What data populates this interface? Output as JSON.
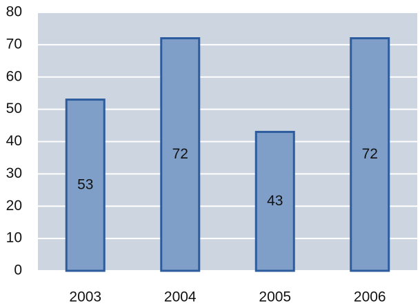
{
  "chart_data": {
    "type": "bar",
    "categories": [
      "2003",
      "2004",
      "2005",
      "2006"
    ],
    "values": [
      53,
      72,
      43,
      72
    ],
    "color": "#7f9fc8",
    "edge_color": "#2d5c9e",
    "background": "#cdd5e1",
    "ylim": [
      0,
      80
    ],
    "yticks": [
      0,
      10,
      20,
      30,
      40,
      50,
      60,
      70,
      80
    ],
    "grid": true
  }
}
